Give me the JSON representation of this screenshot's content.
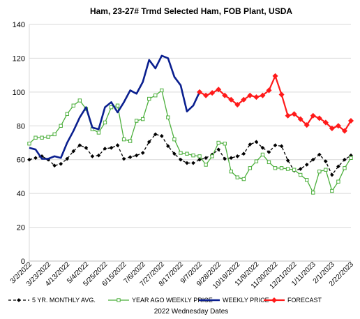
{
  "chart_data": {
    "type": "line",
    "title": "Ham, 23-27# Trmd Selected Ham, FOB Plant, USDA",
    "xlabel": "2022 Wednesday Dates",
    "ylabel": "",
    "ylim": [
      0,
      140
    ],
    "yticks": [
      0,
      20,
      40,
      60,
      80,
      100,
      120,
      140
    ],
    "grid": true,
    "legend_position": "bottom",
    "x_labels": [
      "3/2/2022",
      "3/23/2022",
      "4/13/2022",
      "5/4/2022",
      "5/25/2022",
      "6/15/2022",
      "7/6/2022",
      "7/27/2022",
      "8/17/2022",
      "9/7/2022",
      "9/28/2022",
      "10/19/2022",
      "11/9/2022",
      "11/30/2022",
      "12/21/2022",
      "1/11/2023",
      "2/1/2023",
      "2/22/2023"
    ],
    "series": [
      {
        "name": "5 YR. MONTHLY AVG.",
        "color": "#000000",
        "style": "dashed",
        "marker": "diamond",
        "values": [
          60,
          61,
          62,
          60,
          56.5,
          57.5,
          60.5,
          65,
          68.5,
          67,
          62,
          62.5,
          66.5,
          67,
          68.5,
          60.5,
          61.5,
          62.5,
          64,
          70.5,
          75,
          74,
          68,
          63.5,
          60,
          58,
          58,
          60,
          61,
          63,
          66,
          60.5,
          61,
          62,
          63.5,
          69,
          70.5,
          67,
          64.5,
          68.5,
          68,
          59.5,
          53.5,
          54.5,
          57,
          60,
          63,
          59,
          51,
          56,
          60,
          62.5
        ]
      },
      {
        "name": "YEAR AGO WEEKLY PRICE",
        "color": "#4caf3c",
        "style": "solid",
        "marker": "square-open",
        "values": [
          69.5,
          73,
          73,
          73.5,
          75,
          80,
          87,
          92,
          95,
          90,
          78,
          76,
          82,
          91,
          92,
          72,
          71,
          83,
          84,
          96,
          98,
          101,
          85,
          72,
          64,
          63.5,
          62.5,
          62,
          57,
          62,
          70,
          69.5,
          53,
          49.5,
          48.5,
          55,
          59,
          63,
          58.5,
          55,
          55,
          54.5,
          54,
          51,
          48,
          40.5,
          53,
          54,
          41.5,
          47,
          55,
          61
        ]
      },
      {
        "name": "WEEKLY PRICE",
        "color": "#0a1f8f",
        "style": "solid",
        "marker": "none",
        "values": [
          67,
          66,
          60.5,
          60.5,
          62,
          61,
          70,
          77,
          85,
          91,
          79,
          78,
          91,
          94,
          88,
          94,
          101,
          99,
          106,
          119,
          114,
          121.5,
          120,
          109,
          104,
          88.5,
          92,
          100
        ]
      },
      {
        "name": "FORECAST",
        "color": "#ff1a1a",
        "style": "solid",
        "marker": "diamond",
        "offset": 27,
        "values": [
          100,
          98,
          99.5,
          101.5,
          98,
          95.5,
          92.5,
          95.5,
          98,
          97,
          98,
          101,
          109.5,
          98.5,
          86,
          87,
          84,
          80.5,
          86,
          84.5,
          82,
          78.5,
          80,
          77,
          83
        ]
      }
    ]
  }
}
